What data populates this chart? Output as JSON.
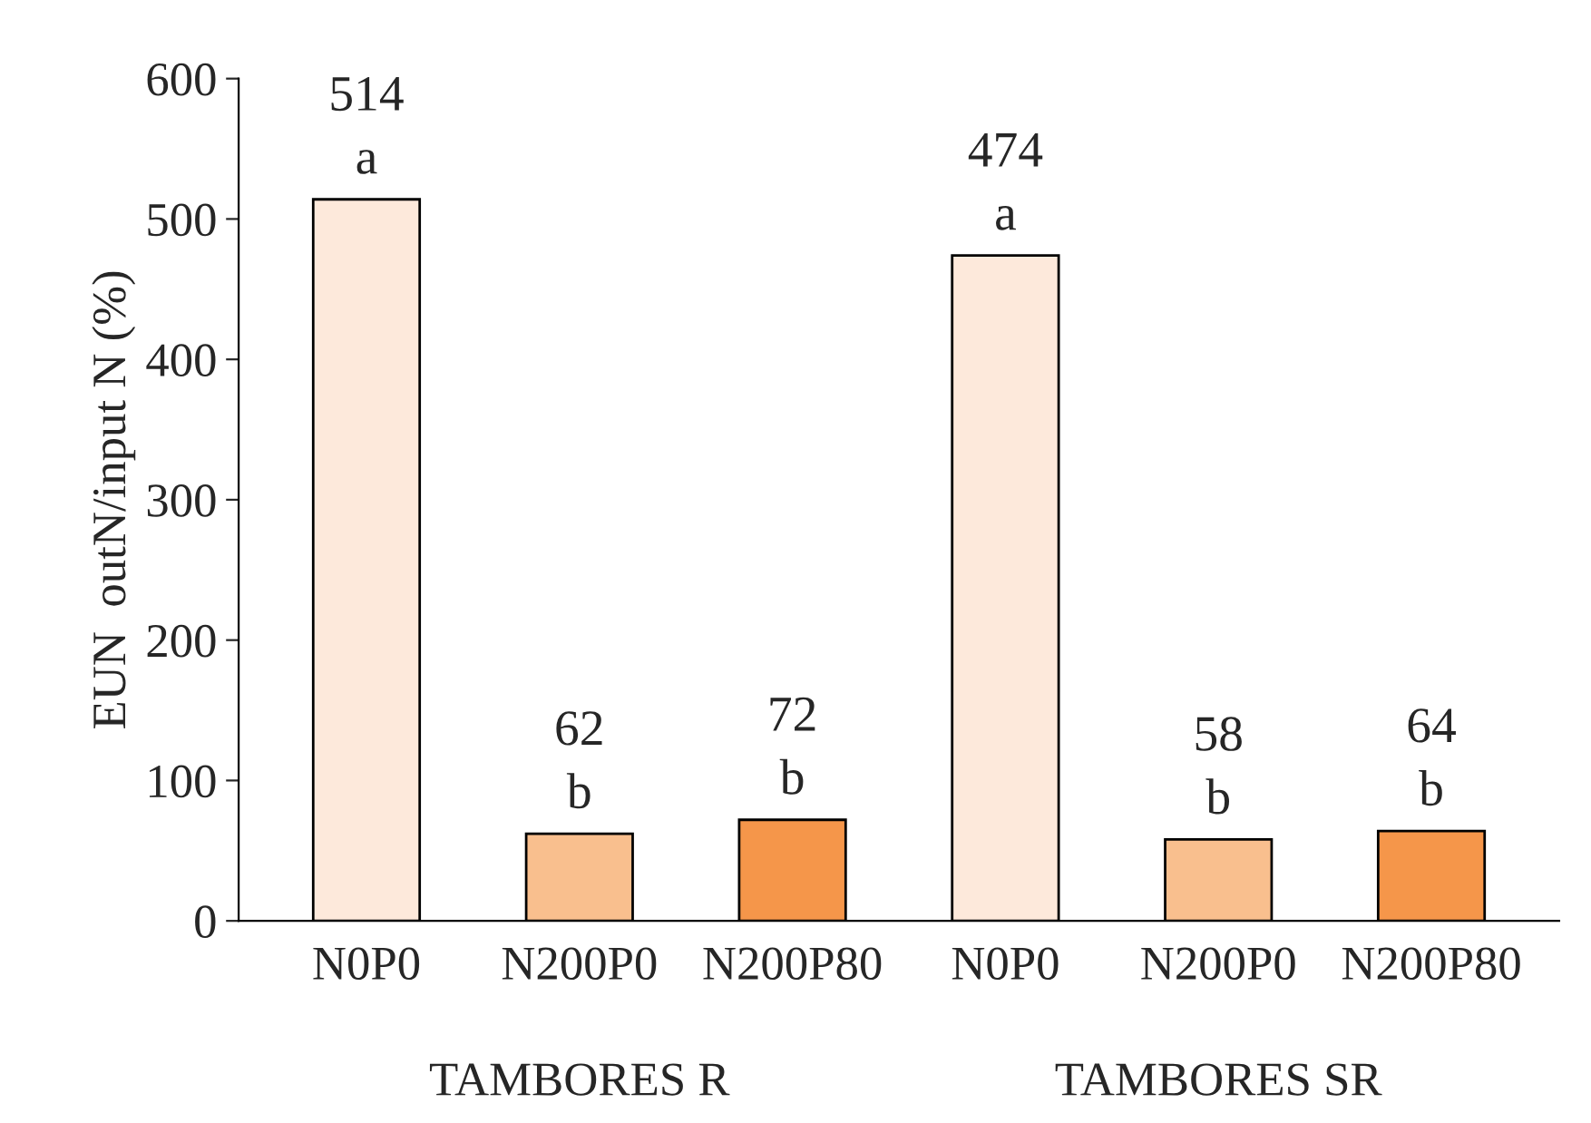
{
  "chart_data": {
    "type": "bar",
    "ylabel": "EUN  outN/input N (%)",
    "categories": [
      "N0P0",
      "N200P0",
      "N200P80",
      "N0P0",
      "N200P0",
      "N200P80"
    ],
    "values": [
      514,
      62,
      72,
      474,
      58,
      64
    ],
    "colors": [
      "#fde9db",
      "#f9bf8e",
      "#f5964a",
      "#fde9db",
      "#f9bf8e",
      "#f5964a"
    ],
    "value_labels": [
      "514\na",
      "62\nb",
      "72\nb",
      "474\na",
      "58\nb",
      "64\nb"
    ],
    "annotations": [
      "TAMBORES R",
      "TAMBORES SR"
    ],
    "ylim": [
      0,
      600
    ],
    "yticks": [
      0,
      100,
      200,
      300,
      400,
      500,
      600
    ],
    "grid": false,
    "legend": false
  }
}
